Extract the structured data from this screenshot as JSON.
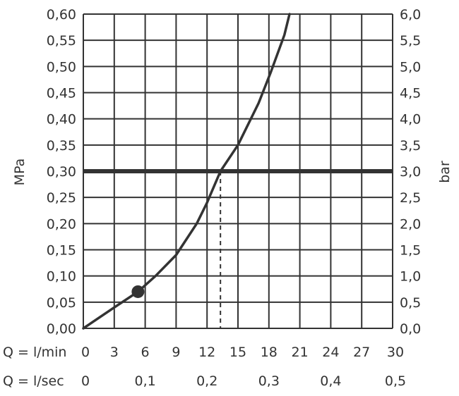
{
  "chart_data": {
    "type": "line",
    "ylabel_left": "MPa",
    "ylabel_right": "bar",
    "x_label_row1": "Q = l/min",
    "x_label_row2": "Q = l/sec",
    "xlim": [
      0,
      30
    ],
    "ylim": [
      0,
      0.6
    ],
    "grid": true,
    "x_ticks_lmin": [
      "0",
      "3",
      "6",
      "9",
      "12",
      "15",
      "18",
      "21",
      "24",
      "27",
      "30"
    ],
    "x_ticks_lsec": [
      {
        "x": 0,
        "label": "0"
      },
      {
        "x": 6,
        "label": "0,1"
      },
      {
        "x": 12,
        "label": "0,2"
      },
      {
        "x": 18,
        "label": "0,3"
      },
      {
        "x": 24,
        "label": "0,4"
      },
      {
        "x": 30,
        "label": "0,5"
      }
    ],
    "y_ticks_left": [
      "0,00",
      "0,05",
      "0,10",
      "0,15",
      "0,20",
      "0,25",
      "0,30",
      "0,35",
      "0,40",
      "0,45",
      "0,50",
      "0,55",
      "0,60"
    ],
    "y_ticks_right": [
      "0,0",
      "0,5",
      "1,0",
      "1,5",
      "2,0",
      "2,5",
      "3,0",
      "3,5",
      "4,0",
      "4,5",
      "5,0",
      "5,5",
      "6,0"
    ],
    "series": [
      {
        "x": [
          0,
          3,
          5.3,
          7,
          9,
          11,
          12,
          13.3,
          15,
          17,
          18.2,
          19.5,
          20
        ],
        "y": [
          0,
          0.04,
          0.07,
          0.1,
          0.14,
          0.2,
          0.24,
          0.3,
          0.35,
          0.43,
          0.49,
          0.56,
          0.6
        ]
      }
    ],
    "reference_line_y": 0.3,
    "reference_drop_x": 13.3,
    "marker_point": {
      "x": 5.3,
      "y": 0.07
    }
  }
}
